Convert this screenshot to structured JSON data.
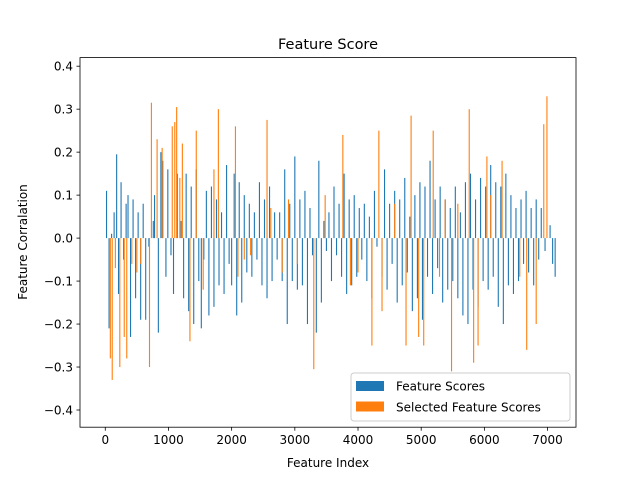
{
  "chart_data": {
    "type": "bar",
    "title": "Feature Score",
    "xlabel": "Feature Index",
    "ylabel": "Feature Corralation",
    "xlim": [
      -400,
      7450
    ],
    "ylim": [
      -0.44,
      0.42
    ],
    "xticks": [
      0,
      1000,
      2000,
      3000,
      4000,
      5000,
      6000,
      7000
    ],
    "xtick_labels": [
      "0",
      "1000",
      "2000",
      "3000",
      "4000",
      "5000",
      "6000",
      "7000"
    ],
    "yticks": [
      -0.4,
      -0.3,
      -0.2,
      -0.1,
      0.0,
      0.1,
      0.2,
      0.3,
      0.4
    ],
    "ytick_labels": [
      "−0.4",
      "−0.3",
      "−0.2",
      "−0.1",
      "0.0",
      "0.1",
      "0.2",
      "0.3",
      "0.4"
    ],
    "legend_position": "lower-right",
    "grid": false,
    "series": [
      {
        "name": "Feature Scores",
        "color": "#1f77b4",
        "points": [
          [
            20,
            0.11
          ],
          [
            60,
            -0.21
          ],
          [
            100,
            0.01
          ],
          [
            140,
            0.06
          ],
          [
            180,
            0.195
          ],
          [
            210,
            -0.13
          ],
          [
            250,
            0.13
          ],
          [
            290,
            -0.05
          ],
          [
            330,
            0.08
          ],
          [
            360,
            0.1
          ],
          [
            400,
            -0.23
          ],
          [
            440,
            0.09
          ],
          [
            480,
            -0.14
          ],
          [
            520,
            0.06
          ],
          [
            560,
            -0.19
          ],
          [
            600,
            0.08
          ],
          [
            640,
            -0.19
          ],
          [
            690,
            -0.02
          ],
          [
            760,
            0.04
          ],
          [
            780,
            0.1
          ],
          [
            840,
            -0.22
          ],
          [
            880,
            0.2
          ],
          [
            910,
            0.18
          ],
          [
            960,
            -0.09
          ],
          [
            990,
            0.16
          ],
          [
            1040,
            -0.04
          ],
          [
            1080,
            -0.13
          ],
          [
            1140,
            0.15
          ],
          [
            1200,
            0.04
          ],
          [
            1240,
            -0.14
          ],
          [
            1280,
            0.15
          ],
          [
            1320,
            -0.17
          ],
          [
            1360,
            0.12
          ],
          [
            1400,
            -0.2
          ],
          [
            1440,
            0.16
          ],
          [
            1480,
            -0.1
          ],
          [
            1520,
            -0.21
          ],
          [
            1560,
            -0.05
          ],
          [
            1600,
            0.11
          ],
          [
            1640,
            -0.18
          ],
          [
            1680,
            0.12
          ],
          [
            1720,
            -0.16
          ],
          [
            1760,
            0.09
          ],
          [
            1800,
            -0.11
          ],
          [
            1840,
            0.06
          ],
          [
            1880,
            -0.13
          ],
          [
            1920,
            0.17
          ],
          [
            1960,
            -0.06
          ],
          [
            2000,
            -0.11
          ],
          [
            2040,
            0.15
          ],
          [
            2080,
            -0.18
          ],
          [
            2120,
            0.13
          ],
          [
            2160,
            -0.15
          ],
          [
            2200,
            0.1
          ],
          [
            2240,
            -0.08
          ],
          [
            2280,
            0.08
          ],
          [
            2320,
            -0.09
          ],
          [
            2360,
            0.06
          ],
          [
            2400,
            -0.05
          ],
          [
            2440,
            0.13
          ],
          [
            2480,
            -0.11
          ],
          [
            2520,
            0.09
          ],
          [
            2560,
            -0.14
          ],
          [
            2600,
            0.12
          ],
          [
            2640,
            -0.1
          ],
          [
            2680,
            0.06
          ],
          [
            2720,
            -0.05
          ],
          [
            2760,
            0.06
          ],
          [
            2800,
            -0.1
          ],
          [
            2840,
            0.16
          ],
          [
            2880,
            -0.2
          ],
          [
            2920,
            0.08
          ],
          [
            2960,
            -0.1
          ],
          [
            3000,
            0.19
          ],
          [
            3040,
            -0.12
          ],
          [
            3080,
            0.09
          ],
          [
            3120,
            -0.11
          ],
          [
            3160,
            0.11
          ],
          [
            3200,
            -0.2
          ],
          [
            3240,
            0.07
          ],
          [
            3280,
            -0.04
          ],
          [
            3340,
            -0.22
          ],
          [
            3380,
            0.18
          ],
          [
            3420,
            -0.15
          ],
          [
            3460,
            0.04
          ],
          [
            3500,
            -0.03
          ],
          [
            3540,
            0.06
          ],
          [
            3580,
            -0.1
          ],
          [
            3620,
            0.12
          ],
          [
            3660,
            -0.04
          ],
          [
            3700,
            0.08
          ],
          [
            3740,
            -0.09
          ],
          [
            3780,
            0.15
          ],
          [
            3820,
            -0.13
          ],
          [
            3860,
            0.09
          ],
          [
            3900,
            -0.11
          ],
          [
            3940,
            0.1
          ],
          [
            3980,
            -0.09
          ],
          [
            4020,
            0.07
          ],
          [
            4060,
            -0.05
          ],
          [
            4100,
            0.08
          ],
          [
            4140,
            -0.1
          ],
          [
            4180,
            0.05
          ],
          [
            4220,
            -0.14
          ],
          [
            4260,
            0.11
          ],
          [
            4300,
            -0.02
          ],
          [
            4380,
            -0.09
          ],
          [
            4420,
            0.16
          ],
          [
            4460,
            -0.12
          ],
          [
            4500,
            0.08
          ],
          [
            4540,
            -0.06
          ],
          [
            4580,
            0.11
          ],
          [
            4620,
            -0.15
          ],
          [
            4660,
            0.09
          ],
          [
            4700,
            -0.11
          ],
          [
            4740,
            0.14
          ],
          [
            4780,
            -0.08
          ],
          [
            4820,
            0.05
          ],
          [
            4860,
            -0.17
          ],
          [
            4900,
            0.1
          ],
          [
            4940,
            -0.14
          ],
          [
            4980,
            0.13
          ],
          [
            5020,
            -0.19
          ],
          [
            5060,
            0.12
          ],
          [
            5100,
            -0.09
          ],
          [
            5140,
            0.18
          ],
          [
            5180,
            -0.13
          ],
          [
            5220,
            0.09
          ],
          [
            5260,
            -0.07
          ],
          [
            5300,
            0.12
          ],
          [
            5340,
            -0.15
          ],
          [
            5380,
            0.09
          ],
          [
            5420,
            -0.12
          ],
          [
            5460,
            0.07
          ],
          [
            5500,
            -0.1
          ],
          [
            5540,
            0.12
          ],
          [
            5580,
            -0.14
          ],
          [
            5620,
            0.06
          ],
          [
            5660,
            -0.18
          ],
          [
            5700,
            0.13
          ],
          [
            5740,
            -0.2
          ],
          [
            5780,
            0.15
          ],
          [
            5820,
            -0.12
          ],
          [
            5860,
            0.09
          ],
          [
            5900,
            -0.16
          ],
          [
            5940,
            0.14
          ],
          [
            5980,
            -0.1
          ],
          [
            6020,
            0.12
          ],
          [
            6060,
            -0.12
          ],
          [
            6100,
            0.17
          ],
          [
            6140,
            -0.09
          ],
          [
            6180,
            0.13
          ],
          [
            6220,
            -0.16
          ],
          [
            6260,
            0.12
          ],
          [
            6300,
            -0.2
          ],
          [
            6340,
            0.15
          ],
          [
            6380,
            -0.11
          ],
          [
            6420,
            0.1
          ],
          [
            6460,
            -0.13
          ],
          [
            6500,
            0.07
          ],
          [
            6540,
            -0.1
          ],
          [
            6580,
            0.09
          ],
          [
            6620,
            -0.06
          ],
          [
            6660,
            0.11
          ],
          [
            6700,
            -0.08
          ],
          [
            6740,
            0.07
          ],
          [
            6780,
            -0.11
          ],
          [
            6820,
            0.09
          ],
          [
            6860,
            -0.05
          ],
          [
            6900,
            0.07
          ],
          [
            6960,
            -0.03
          ],
          [
            7040,
            0.03
          ],
          [
            7080,
            -0.06
          ],
          [
            7120,
            -0.09
          ]
        ]
      },
      {
        "name": "Selected Feature Scores",
        "color": "#ff7f0e",
        "points": [
          [
            80,
            -0.28
          ],
          [
            110,
            -0.33
          ],
          [
            160,
            -0.07
          ],
          [
            230,
            -0.3
          ],
          [
            300,
            -0.23
          ],
          [
            340,
            -0.28
          ],
          [
            420,
            -0.06
          ],
          [
            500,
            -0.08
          ],
          [
            560,
            -0.06
          ],
          [
            700,
            -0.3
          ],
          [
            730,
            0.315
          ],
          [
            820,
            0.23
          ],
          [
            900,
            0.21
          ],
          [
            1060,
            0.26
          ],
          [
            1100,
            0.27
          ],
          [
            1130,
            0.305
          ],
          [
            1180,
            0.14
          ],
          [
            1220,
            0.22
          ],
          [
            1340,
            -0.24
          ],
          [
            1440,
            0.25
          ],
          [
            1550,
            -0.12
          ],
          [
            1720,
            0.16
          ],
          [
            1790,
            0.3
          ],
          [
            2060,
            0.26
          ],
          [
            2100,
            -0.09
          ],
          [
            2200,
            -0.05
          ],
          [
            2300,
            -0.04
          ],
          [
            2560,
            0.275
          ],
          [
            2620,
            0.07
          ],
          [
            2800,
            -0.08
          ],
          [
            2900,
            0.09
          ],
          [
            3040,
            -0.06
          ],
          [
            3300,
            -0.305
          ],
          [
            3480,
            0.1
          ],
          [
            3760,
            0.24
          ],
          [
            3880,
            -0.11
          ],
          [
            4000,
            -0.08
          ],
          [
            4220,
            -0.25
          ],
          [
            4330,
            0.25
          ],
          [
            4380,
            -0.17
          ],
          [
            4580,
            0.08
          ],
          [
            4760,
            -0.25
          ],
          [
            4840,
            0.285
          ],
          [
            4960,
            -0.23
          ],
          [
            5040,
            -0.25
          ],
          [
            5190,
            0.25
          ],
          [
            5290,
            -0.09
          ],
          [
            5380,
            0.09
          ],
          [
            5480,
            -0.31
          ],
          [
            5580,
            0.08
          ],
          [
            5760,
            0.3
          ],
          [
            5830,
            -0.29
          ],
          [
            5900,
            -0.25
          ],
          [
            6040,
            0.19
          ],
          [
            6100,
            0.1
          ],
          [
            6280,
            0.18
          ],
          [
            6560,
            -0.09
          ],
          [
            6670,
            -0.26
          ],
          [
            6820,
            -0.2
          ],
          [
            6940,
            0.265
          ],
          [
            6990,
            0.33
          ]
        ]
      }
    ]
  }
}
